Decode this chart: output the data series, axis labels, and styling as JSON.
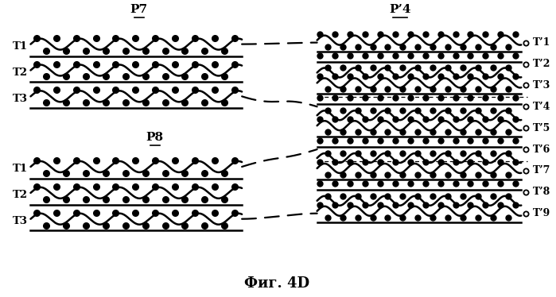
{
  "title": "Фиг. 4D",
  "P7_label": "P7",
  "P8_label": "P8",
  "P4_label": "P’4",
  "left_top_labels": [
    "T1",
    "T2",
    "T3"
  ],
  "left_bot_labels": [
    "T1",
    "T2",
    "T3"
  ],
  "right_labels": [
    "T’1",
    "T’2",
    "T’3",
    "T’4",
    "T’5",
    "T’6",
    "T’7",
    "T’8",
    "T’9"
  ],
  "bg_color": "#ffffff",
  "lc": "#000000"
}
